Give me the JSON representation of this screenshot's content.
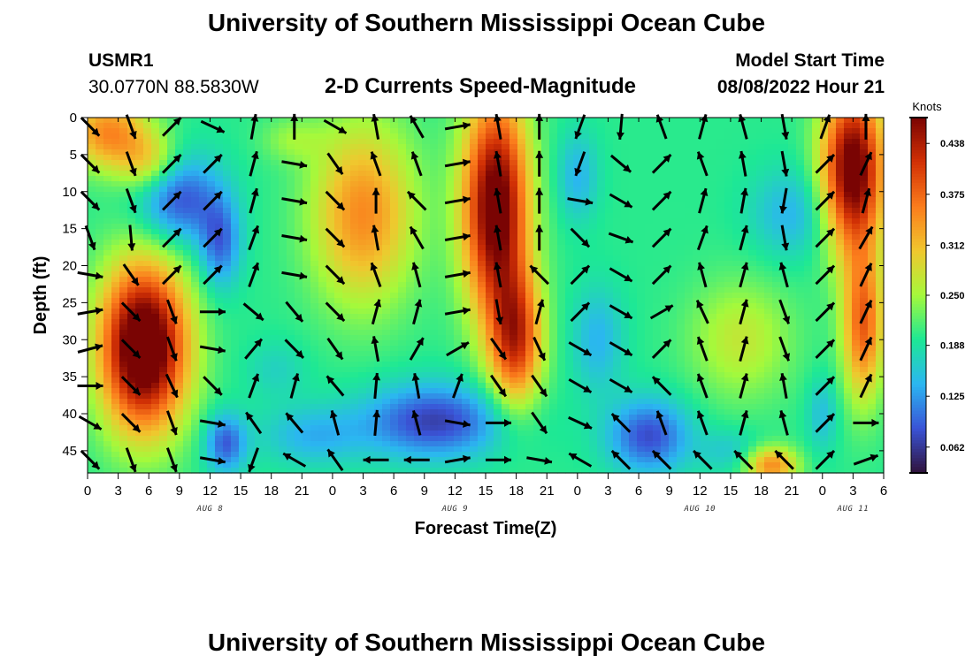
{
  "header": {
    "title": "University of Southern Mississippi Ocean Cube",
    "station": "USMR1",
    "coords": "30.0770N  88.5830W",
    "plot_title": "2-D Currents Speed-Magnitude",
    "model_label": "Model Start Time",
    "model_time": "08/08/2022 Hour 21",
    "footer_title": "University of Southern Mississippi Ocean Cube"
  },
  "colors": {
    "colormap": [
      "#30123b",
      "#3a53d6",
      "#2bb6f1",
      "#1de895",
      "#a5f93b",
      "#f0c72e",
      "#fb7c1c",
      "#d23105",
      "#7a0403"
    ]
  },
  "chart_data": {
    "type": "heatmap",
    "title": "2-D Currents Speed-Magnitude",
    "xlabel": "Forecast Time(Z)",
    "ylabel": "Depth (ft)",
    "x_tick_labels": [
      "0",
      "3",
      "6",
      "9",
      "12",
      "15",
      "18",
      "21",
      "0",
      "3",
      "6",
      "9",
      "12",
      "15",
      "18",
      "21",
      "0",
      "3",
      "6",
      "9",
      "12",
      "15",
      "18",
      "21",
      "0",
      "3",
      "6"
    ],
    "x_hours": [
      0,
      3,
      6,
      9,
      12,
      15,
      18,
      21,
      24,
      27,
      30,
      33,
      36,
      39,
      42,
      45,
      48,
      51,
      54,
      57,
      60,
      63,
      66,
      69,
      72,
      75,
      78
    ],
    "day_labels": [
      {
        "label": "AUG 8",
        "hour": 12
      },
      {
        "label": "AUG 9",
        "hour": 36
      },
      {
        "label": "AUG 10",
        "hour": 60
      },
      {
        "label": "AUG 11",
        "hour": 75
      }
    ],
    "y_ticks": [
      0,
      5,
      10,
      15,
      20,
      25,
      30,
      35,
      40,
      45
    ],
    "xlim": [
      0,
      78
    ],
    "ylim": [
      0,
      48
    ],
    "colorbar": {
      "units": "Knots",
      "range": [
        0.03,
        0.47
      ],
      "tick_labels": [
        "0.062",
        "0.125",
        "0.188",
        "0.250",
        "0.312",
        "0.375",
        "0.438"
      ],
      "ticks": [
        0.062,
        0.125,
        0.188,
        0.25,
        0.312,
        0.375,
        0.438
      ]
    },
    "speed_field_features": [
      {
        "t": 2,
        "d": 2,
        "a": 0.15,
        "st": 4,
        "sd": 5
      },
      {
        "t": 6,
        "d": 6,
        "a": 0.09,
        "st": 3,
        "sd": 4
      },
      {
        "t": 9,
        "d": 11,
        "a": -0.12,
        "st": 4,
        "sd": 6
      },
      {
        "t": 13,
        "d": 17,
        "a": -0.1,
        "st": 2,
        "sd": 6
      },
      {
        "t": 5.5,
        "d": 31,
        "a": 0.34,
        "st": 4.2,
        "sd": 11
      },
      {
        "t": 13.5,
        "d": 44,
        "a": -0.11,
        "st": 2,
        "sd": 4
      },
      {
        "t": 27,
        "d": 13,
        "a": 0.15,
        "st": 5,
        "sd": 12
      },
      {
        "t": 20,
        "d": 3,
        "a": 0.04,
        "st": 3,
        "sd": 3
      },
      {
        "t": 34,
        "d": 41,
        "a": -0.13,
        "st": 7,
        "sd": 5
      },
      {
        "t": 22,
        "d": 43,
        "a": -0.06,
        "st": 5,
        "sd": 4
      },
      {
        "t": 18.5,
        "d": 34,
        "a": -0.03,
        "st": 3,
        "sd": 4
      },
      {
        "t": 40,
        "d": 12,
        "a": 0.3,
        "st": 3.2,
        "sd": 15
      },
      {
        "t": 42,
        "d": 30,
        "a": 0.2,
        "st": 2.5,
        "sd": 9
      },
      {
        "t": 48,
        "d": 8,
        "a": -0.06,
        "st": 2,
        "sd": 6
      },
      {
        "t": 50,
        "d": 30,
        "a": -0.06,
        "st": 2.5,
        "sd": 7
      },
      {
        "t": 55,
        "d": 43,
        "a": -0.12,
        "st": 4,
        "sd": 5
      },
      {
        "t": 64,
        "d": 30,
        "a": 0.07,
        "st": 5,
        "sd": 8
      },
      {
        "t": 69,
        "d": 13,
        "a": -0.06,
        "st": 4,
        "sd": 6
      },
      {
        "t": 63,
        "d": 45,
        "a": -0.04,
        "st": 3,
        "sd": 3
      },
      {
        "t": 67,
        "d": 47,
        "a": 0.15,
        "st": 2.5,
        "sd": 2.5
      },
      {
        "t": 75,
        "d": 7,
        "a": 0.3,
        "st": 3,
        "sd": 11
      },
      {
        "t": 76,
        "d": 28,
        "a": 0.18,
        "st": 2,
        "sd": 10
      },
      {
        "t": 72,
        "d": 40,
        "a": -0.05,
        "st": 1.5,
        "sd": 5
      }
    ],
    "arrow_times": [
      0,
      4,
      8,
      12,
      16,
      20,
      24,
      28,
      32,
      36,
      40,
      44,
      48,
      52,
      56,
      60,
      64,
      68,
      72,
      76
    ],
    "arrow_depths": [
      1,
      6,
      11,
      16,
      21,
      26,
      31,
      36,
      41,
      46
    ],
    "arrows_deg": [
      [
        135,
        160,
        45,
        115,
        10,
        0,
        120,
        350,
        330,
        80,
        350,
        0,
        200,
        185,
        340,
        15,
        345,
        170,
        20,
        0
      ],
      [
        135,
        160,
        45,
        45,
        15,
        100,
        145,
        340,
        340,
        80,
        350,
        0,
        200,
        130,
        45,
        340,
        350,
        170,
        45,
        25
      ],
      [
        135,
        160,
        45,
        45,
        15,
        100,
        135,
        0,
        315,
        80,
        350,
        0,
        100,
        120,
        45,
        15,
        10,
        190,
        45,
        15
      ],
      [
        160,
        175,
        45,
        45,
        20,
        100,
        135,
        350,
        330,
        80,
        350,
        0,
        135,
        110,
        45,
        20,
        15,
        170,
        45,
        30
      ],
      [
        100,
        145,
        45,
        45,
        20,
        100,
        135,
        340,
        345,
        80,
        350,
        315,
        45,
        120,
        45,
        345,
        15,
        345,
        45,
        25
      ],
      [
        80,
        135,
        160,
        90,
        130,
        140,
        135,
        15,
        15,
        80,
        170,
        15,
        45,
        120,
        60,
        335,
        15,
        160,
        45,
        25
      ],
      [
        75,
        135,
        160,
        100,
        40,
        135,
        145,
        350,
        30,
        60,
        145,
        155,
        120,
        120,
        45,
        340,
        15,
        160,
        45,
        25
      ],
      [
        90,
        135,
        155,
        135,
        20,
        15,
        320,
        5,
        350,
        20,
        145,
        145,
        120,
        120,
        315,
        340,
        15,
        350,
        45,
        25
      ],
      [
        120,
        135,
        160,
        100,
        325,
        320,
        345,
        5,
        345,
        100,
        90,
        145,
        115,
        315,
        340,
        340,
        15,
        345,
        45,
        90
      ],
      [
        135,
        160,
        160,
        100,
        200,
        300,
        325,
        270,
        270,
        80,
        90,
        100,
        300,
        315,
        315,
        315,
        315,
        315,
        45,
        70
      ]
    ]
  }
}
